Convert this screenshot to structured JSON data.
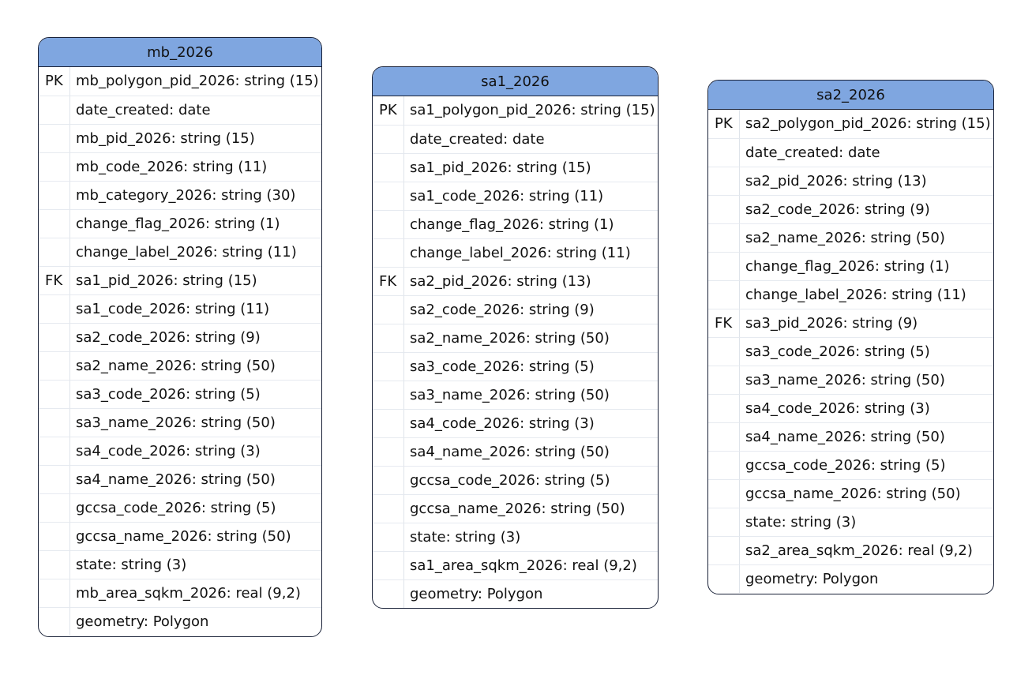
{
  "tables": [
    {
      "name": "mb_2026",
      "fields": [
        {
          "key": "PK",
          "text": "mb_polygon_pid_2026: string (15)"
        },
        {
          "key": "",
          "text": "date_created: date"
        },
        {
          "key": "",
          "text": "mb_pid_2026: string (15)"
        },
        {
          "key": "",
          "text": "mb_code_2026: string (11)"
        },
        {
          "key": "",
          "text": "mb_category_2026: string (30)"
        },
        {
          "key": "",
          "text": "change_flag_2026: string (1)"
        },
        {
          "key": "",
          "text": "change_label_2026: string (11)"
        },
        {
          "key": "FK",
          "text": "sa1_pid_2026: string (15)"
        },
        {
          "key": "",
          "text": "sa1_code_2026: string (11)"
        },
        {
          "key": "",
          "text": "sa2_code_2026: string (9)"
        },
        {
          "key": "",
          "text": "sa2_name_2026: string (50)"
        },
        {
          "key": "",
          "text": "sa3_code_2026: string (5)"
        },
        {
          "key": "",
          "text": "sa3_name_2026: string (50)"
        },
        {
          "key": "",
          "text": "sa4_code_2026: string (3)"
        },
        {
          "key": "",
          "text": "sa4_name_2026: string (50)"
        },
        {
          "key": "",
          "text": "gccsa_code_2026: string (5)"
        },
        {
          "key": "",
          "text": "gccsa_name_2026: string (50)"
        },
        {
          "key": "",
          "text": "state: string (3)"
        },
        {
          "key": "",
          "text": "mb_area_sqkm_2026: real (9,2)"
        },
        {
          "key": "",
          "text": "geometry: Polygon"
        }
      ]
    },
    {
      "name": "sa1_2026",
      "fields": [
        {
          "key": "PK",
          "text": "sa1_polygon_pid_2026: string (15)"
        },
        {
          "key": "",
          "text": "date_created: date"
        },
        {
          "key": "",
          "text": "sa1_pid_2026: string (15)"
        },
        {
          "key": "",
          "text": "sa1_code_2026: string (11)"
        },
        {
          "key": "",
          "text": "change_flag_2026: string (1)"
        },
        {
          "key": "",
          "text": "change_label_2026: string (11)"
        },
        {
          "key": "FK",
          "text": "sa2_pid_2026: string (13)"
        },
        {
          "key": "",
          "text": "sa2_code_2026: string (9)"
        },
        {
          "key": "",
          "text": "sa2_name_2026: string (50)"
        },
        {
          "key": "",
          "text": "sa3_code_2026: string (5)"
        },
        {
          "key": "",
          "text": "sa3_name_2026: string (50)"
        },
        {
          "key": "",
          "text": "sa4_code_2026: string (3)"
        },
        {
          "key": "",
          "text": "sa4_name_2026: string (50)"
        },
        {
          "key": "",
          "text": "gccsa_code_2026: string (5)"
        },
        {
          "key": "",
          "text": "gccsa_name_2026: string (50)"
        },
        {
          "key": "",
          "text": "state: string (3)"
        },
        {
          "key": "",
          "text": "sa1_area_sqkm_2026: real (9,2)"
        },
        {
          "key": "",
          "text": "geometry: Polygon"
        }
      ]
    },
    {
      "name": "sa2_2026",
      "fields": [
        {
          "key": "PK",
          "text": "sa2_polygon_pid_2026: string (15)"
        },
        {
          "key": "",
          "text": "date_created: date"
        },
        {
          "key": "",
          "text": "sa2_pid_2026: string (13)"
        },
        {
          "key": "",
          "text": "sa2_code_2026: string (9)"
        },
        {
          "key": "",
          "text": "sa2_name_2026: string (50)"
        },
        {
          "key": "",
          "text": "change_flag_2026: string (1)"
        },
        {
          "key": "",
          "text": "change_label_2026: string (11)"
        },
        {
          "key": "FK",
          "text": "sa3_pid_2026: string (9)"
        },
        {
          "key": "",
          "text": "sa3_code_2026: string (5)"
        },
        {
          "key": "",
          "text": "sa3_name_2026: string (50)"
        },
        {
          "key": "",
          "text": "sa4_code_2026: string (3)"
        },
        {
          "key": "",
          "text": "sa4_name_2026: string (50)"
        },
        {
          "key": "",
          "text": "gccsa_code_2026: string (5)"
        },
        {
          "key": "",
          "text": "gccsa_name_2026: string (50)"
        },
        {
          "key": "",
          "text": "state: string (3)"
        },
        {
          "key": "",
          "text": "sa2_area_sqkm_2026: real (9,2)"
        },
        {
          "key": "",
          "text": "geometry: Polygon"
        }
      ]
    }
  ]
}
